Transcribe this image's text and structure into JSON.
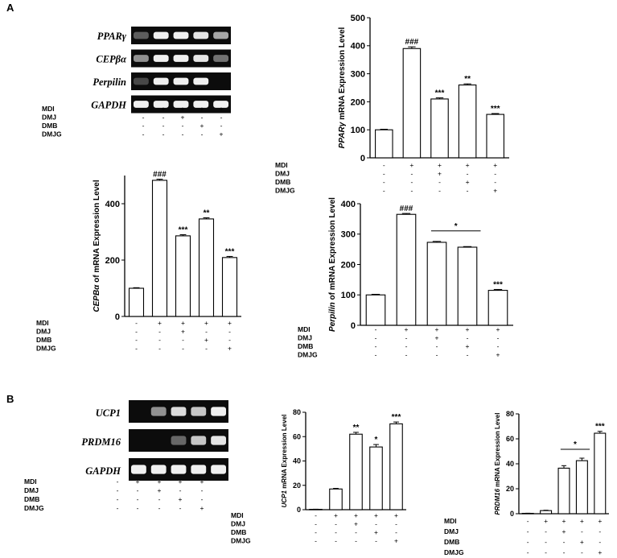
{
  "panel_labels": {
    "a": "A",
    "b": "B"
  },
  "treatment_labels": [
    "MDI",
    "DMJ",
    "DMB",
    "DMJG"
  ],
  "treatment_signs": [
    [
      "-",
      "+",
      "+",
      "+",
      "+"
    ],
    [
      "-",
      "-",
      "+",
      "-",
      "-"
    ],
    [
      "-",
      "-",
      "-",
      "+",
      "-"
    ],
    [
      "-",
      "-",
      "-",
      "-",
      "+"
    ]
  ],
  "gel_a": {
    "bands": [
      "PPARγ",
      "CEPβα",
      "Perpilin",
      "GAPDH"
    ],
    "intensity": [
      [
        0.25,
        0.95,
        0.95,
        0.9,
        0.6
      ],
      [
        0.5,
        0.95,
        0.95,
        0.9,
        0.35
      ],
      [
        0.15,
        0.95,
        0.95,
        0.95,
        0.0
      ],
      [
        0.95,
        0.95,
        0.95,
        0.95,
        0.95
      ]
    ]
  },
  "gel_b": {
    "bands": [
      "UCP1",
      "PRDM16",
      "GAPDH"
    ],
    "intensity": [
      [
        0.0,
        0.5,
        0.85,
        0.75,
        0.95
      ],
      [
        0.0,
        0.0,
        0.3,
        0.75,
        0.9
      ],
      [
        0.95,
        0.95,
        0.95,
        0.95,
        0.95
      ]
    ]
  },
  "chart_data": [
    {
      "id": "ppar",
      "type": "bar",
      "ylabel_italic": "PPARγ",
      "ylabel_rest": " mRNA Expression Level",
      "ylim": [
        0,
        500
      ],
      "yticks": [
        "0",
        "100",
        "200",
        "300",
        "400",
        "500"
      ],
      "values": [
        100,
        390,
        210,
        260,
        155
      ],
      "errors": [
        2,
        6,
        4,
        4,
        3
      ],
      "annotations": [
        "",
        "###",
        "***",
        "**",
        "***"
      ]
    },
    {
      "id": "cepb",
      "type": "bar",
      "ylabel_italic": "CEPBα",
      "ylabel_rest": " of mRNA Expression Level",
      "ylim": [
        0,
        500
      ],
      "yticks": [
        "0",
        "200",
        "400"
      ],
      "values": [
        100,
        483,
        286,
        346,
        209
      ],
      "errors": [
        2,
        4,
        4,
        4,
        4
      ],
      "annotations": [
        "",
        "###",
        "***",
        "**",
        "***"
      ]
    },
    {
      "id": "perpilin",
      "type": "bar",
      "ylabel_italic": "Perpilin",
      "ylabel_rest": " of mRNA Expression Level",
      "ylim": [
        0,
        400
      ],
      "yticks": [
        "0",
        "100",
        "200",
        "300",
        "400"
      ],
      "values": [
        100,
        365,
        273,
        257,
        115
      ],
      "errors": [
        2,
        3,
        3,
        2,
        3
      ],
      "annotations": [
        "",
        "###",
        "",
        "",
        "***"
      ],
      "bracket_label": "*"
    },
    {
      "id": "ucp1",
      "type": "bar",
      "ylabel_italic": "UCP1",
      "ylabel_rest": " mRNA Expression Level",
      "ylim": [
        0,
        80
      ],
      "yticks": [
        "0",
        "20",
        "40",
        "60",
        "80"
      ],
      "values": [
        0.3,
        17,
        62,
        51.5,
        70.5
      ],
      "errors": [
        0.1,
        0.5,
        1.5,
        2,
        1.5
      ],
      "annotations": [
        "",
        "",
        "**",
        "*",
        "***"
      ]
    },
    {
      "id": "prdm16",
      "type": "bar",
      "ylabel_italic": "PRDM16",
      "ylabel_rest": " mRNA Expression Level",
      "ylim": [
        0,
        80
      ],
      "yticks": [
        "0",
        "20",
        "40",
        "60",
        "80"
      ],
      "values": [
        0.3,
        2.5,
        36.5,
        42.5,
        64.5
      ],
      "errors": [
        0.1,
        0.3,
        2,
        2,
        1.5
      ],
      "annotations": [
        "",
        "",
        "",
        "",
        "***"
      ],
      "bracket_label": "*"
    }
  ]
}
